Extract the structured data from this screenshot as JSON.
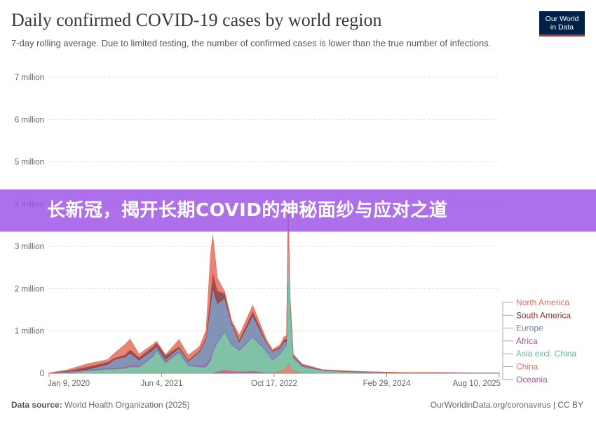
{
  "header": {
    "title": "Daily confirmed COVID-19 cases by world region",
    "subtitle": "7-day rolling average. Due to limited testing, the number of confirmed cases is lower than the true number of infections.",
    "logo_line1": "Our World",
    "logo_line2": "in Data"
  },
  "banner": {
    "text": "长新冠，揭开长期COVID的神秘面纱与应对之道",
    "color": "#9e54e6"
  },
  "footer": {
    "source_label": "Data source:",
    "source_text": "World Health Organization (2025)",
    "right_text": "OurWorldinData.org/coronavirus | CC BY"
  },
  "chart_data": {
    "type": "area",
    "stacked": true,
    "y_ticks": [
      "0",
      "1 million",
      "2 million",
      "3 million",
      "4 million",
      "5 million",
      "6 million",
      "7 million"
    ],
    "ylim": [
      0,
      7000000
    ],
    "x_ticks": [
      "Jan 9, 2020",
      "Jun 4, 2021",
      "Oct 17, 2022",
      "Feb 29, 2024",
      "Aug 10, 2025"
    ],
    "x": [
      "2020-01-09",
      "2020-04-01",
      "2020-07-01",
      "2020-10-01",
      "2020-11-01",
      "2020-12-20",
      "2021-01-10",
      "2021-02-20",
      "2021-04-25",
      "2021-05-10",
      "2021-06-20",
      "2021-08-20",
      "2021-10-01",
      "2021-11-20",
      "2021-12-20",
      "2022-01-10",
      "2022-01-20",
      "2022-02-10",
      "2022-03-15",
      "2022-04-15",
      "2022-05-20",
      "2022-07-20",
      "2022-09-20",
      "2022-10-17",
      "2022-11-20",
      "2022-12-08",
      "2022-12-20",
      "2022-12-28",
      "2023-01-05",
      "2023-01-20",
      "2023-03-01",
      "2023-06-01",
      "2023-10-01",
      "2024-01-01",
      "2024-06-01",
      "2024-12-01",
      "2025-06-01",
      "2025-08-10"
    ],
    "series": [
      {
        "name": "Oceania",
        "color": "#a2559c",
        "values": [
          0,
          0,
          0,
          0,
          0,
          0,
          0,
          0,
          0,
          0,
          0,
          0,
          0,
          0,
          0,
          0,
          5000,
          40000,
          60000,
          40000,
          30000,
          50000,
          10000,
          5000,
          5000,
          5000,
          5000,
          5000,
          5000,
          5000,
          3000,
          1000,
          500,
          500,
          200,
          200,
          100,
          100
        ]
      },
      {
        "name": "China",
        "color": "#e56e5a",
        "values": [
          10000,
          0,
          0,
          0,
          0,
          0,
          0,
          0,
          0,
          0,
          0,
          0,
          0,
          0,
          0,
          0,
          0,
          0,
          20000,
          30000,
          10000,
          5000,
          5000,
          10000,
          40000,
          80000,
          150000,
          250000,
          150000,
          50000,
          5000,
          2000,
          1000,
          500,
          200,
          200,
          100,
          100
        ]
      },
      {
        "name": "Asia excl. China",
        "color": "#6ab797",
        "values": [
          0,
          10000,
          60000,
          100000,
          100000,
          120000,
          150000,
          150000,
          400000,
          550000,
          250000,
          500000,
          180000,
          150000,
          150000,
          300000,
          500000,
          700000,
          900000,
          600000,
          500000,
          800000,
          500000,
          300000,
          400000,
          500000,
          500000,
          3500000,
          1500000,
          300000,
          150000,
          60000,
          30000,
          20000,
          10000,
          10000,
          5000,
          5000
        ]
      },
      {
        "name": "Africa",
        "color": "#a2559c",
        "values": [
          0,
          5000,
          20000,
          15000,
          10000,
          20000,
          30000,
          15000,
          10000,
          10000,
          30000,
          20000,
          10000,
          10000,
          60000,
          40000,
          20000,
          10000,
          5000,
          5000,
          5000,
          5000,
          5000,
          5000,
          5000,
          5000,
          5000,
          5000,
          5000,
          5000,
          3000,
          1000,
          500,
          500,
          200,
          200,
          100,
          100
        ]
      },
      {
        "name": "Europe",
        "color": "#6c80a8",
        "values": [
          0,
          30000,
          15000,
          100000,
          220000,
          250000,
          300000,
          150000,
          150000,
          80000,
          50000,
          80000,
          100000,
          350000,
          600000,
          1300000,
          1500000,
          900000,
          800000,
          500000,
          200000,
          500000,
          200000,
          200000,
          150000,
          150000,
          100000,
          100000,
          80000,
          50000,
          30000,
          10000,
          10000,
          10000,
          5000,
          5000,
          2000,
          2000
        ]
      },
      {
        "name": "South America",
        "color": "#883039",
        "values": [
          0,
          10000,
          60000,
          50000,
          30000,
          50000,
          80000,
          60000,
          70000,
          80000,
          90000,
          30000,
          20000,
          20000,
          30000,
          200000,
          350000,
          300000,
          100000,
          30000,
          40000,
          100000,
          20000,
          10000,
          20000,
          50000,
          50000,
          30000,
          20000,
          10000,
          10000,
          5000,
          5000,
          2000,
          2000,
          1000,
          1000,
          1000
        ]
      },
      {
        "name": "North America",
        "color": "#e56e5a",
        "values": [
          0,
          30000,
          70000,
          60000,
          120000,
          250000,
          250000,
          80000,
          60000,
          40000,
          20000,
          170000,
          120000,
          100000,
          170000,
          1000000,
          900000,
          300000,
          50000,
          50000,
          120000,
          150000,
          60000,
          40000,
          50000,
          70000,
          80000,
          60000,
          40000,
          30000,
          20000,
          10000,
          8000,
          5000,
          3000,
          2000,
          1000,
          1000
        ]
      }
    ],
    "legend_order": [
      "North America",
      "South America",
      "Europe",
      "Africa",
      "Asia excl. China",
      "China",
      "Oceania"
    ],
    "grid": true,
    "legend_placement": "right"
  }
}
